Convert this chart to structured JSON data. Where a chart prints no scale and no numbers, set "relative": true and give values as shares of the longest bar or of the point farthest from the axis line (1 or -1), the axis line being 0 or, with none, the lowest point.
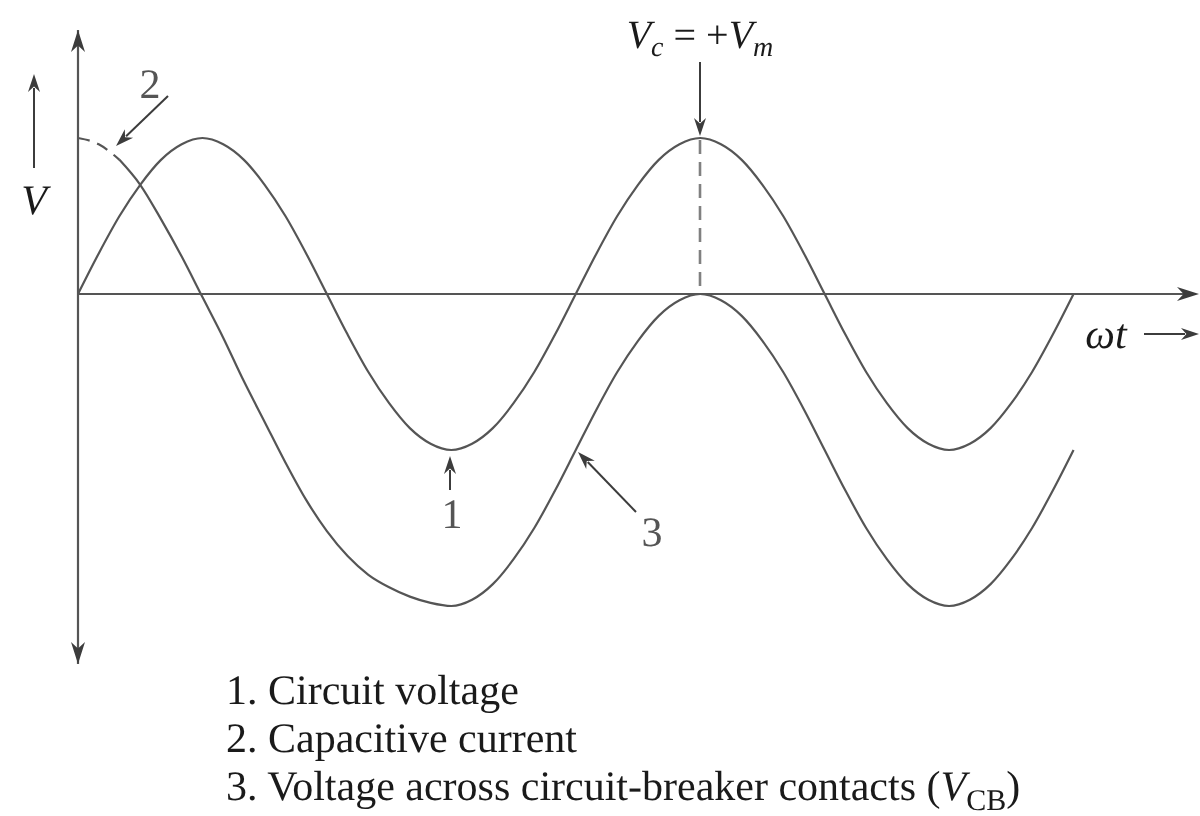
{
  "chart_data": {
    "type": "line",
    "relative": true,
    "xlabel": "ωt",
    "ylabel": "V",
    "categories": [
      null,
      null,
      null,
      null,
      null,
      null,
      null,
      null,
      null,
      null,
      null,
      null,
      null,
      null,
      null,
      null,
      null,
      null,
      null,
      null,
      null,
      null,
      null,
      null,
      null,
      null,
      null,
      null,
      null,
      null,
      null,
      null,
      null,
      null,
      null,
      null,
      null,
      null,
      null,
      null,
      null,
      null,
      null,
      null,
      null,
      null,
      null,
      null,
      null,
      null,
      null,
      null,
      null,
      null,
      null
    ],
    "series": [
      {
        "name": "1",
        "color": "#555555",
        "values": [
          0,
          0.13,
          0.25,
          0.35,
          0.43,
          0.48,
          0.5,
          0.48,
          0.43,
          0.35,
          0.25,
          0.13,
          0,
          -0.13,
          -0.25,
          -0.35,
          -0.43,
          -0.48,
          -0.5,
          -0.48,
          -0.43,
          -0.35,
          -0.25,
          -0.13,
          0,
          0.13,
          0.25,
          0.35,
          0.43,
          0.48,
          0.5,
          0.48,
          0.43,
          0.35,
          0.25,
          0.13,
          0,
          -0.13,
          -0.25,
          -0.35,
          -0.43,
          -0.48,
          -0.5,
          -0.48,
          -0.43,
          -0.35,
          -0.25,
          -0.13,
          0,
          null,
          null,
          null,
          null,
          null,
          null
        ]
      },
      {
        "name": "2",
        "color": "#555555",
        "line_style": "dashed",
        "values": [
          0.5,
          0.48,
          0.43,
          null,
          null,
          null,
          null,
          null,
          null,
          null,
          null,
          null,
          null,
          null,
          null,
          null,
          null,
          null,
          null,
          null,
          null,
          null,
          null,
          null,
          null,
          null,
          null,
          null,
          null,
          null,
          null,
          null,
          null,
          null,
          null,
          null,
          null,
          null,
          null,
          null,
          null,
          null,
          null,
          null,
          null,
          null,
          null,
          null,
          null,
          null,
          null,
          null,
          null,
          null,
          null
        ]
      },
      {
        "name": "3",
        "color": "#555555",
        "values": [
          null,
          null,
          0.43,
          0.35,
          0.24,
          0.12,
          -0.01,
          -0.14,
          -0.28,
          -0.41,
          -0.54,
          -0.66,
          -0.76,
          -0.84,
          -0.9,
          -0.94,
          -0.97,
          -0.99,
          -1,
          -0.98,
          -0.93,
          -0.85,
          -0.75,
          -0.63,
          -0.5,
          -0.37,
          -0.25,
          -0.15,
          -0.07,
          -0.02,
          0,
          -0.02,
          -0.07,
          -0.15,
          -0.25,
          -0.37,
          -0.5,
          -0.63,
          -0.75,
          -0.85,
          -0.93,
          -0.98,
          -1,
          -0.98,
          -0.93,
          -0.85,
          -0.75,
          -0.63,
          -0.5,
          null,
          null,
          null,
          null,
          null,
          null
        ]
      }
    ],
    "annotations": [
      {
        "text": "V$_{c}$ = +V$_{m}$",
        "y": 0.5
      },
      "1. Circuit voltage",
      "2. Capacitive current",
      "3. Voltage across circuit-breaker contacts (V$_{CB}$)"
    ]
  }
}
